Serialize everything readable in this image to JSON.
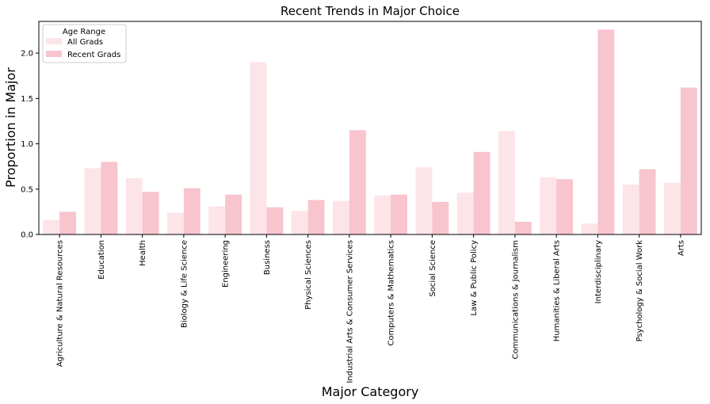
{
  "chart_data": {
    "type": "bar",
    "title": "Recent Trends in Major Choice",
    "xlabel": "Major Category",
    "ylabel": "Proportion in Major",
    "ylim": [
      0,
      2.35
    ],
    "yticks": [
      0.0,
      0.5,
      1.0,
      1.5,
      2.0
    ],
    "ytick_labels": [
      "0.0",
      "0.5",
      "1.0",
      "1.5",
      "2.0"
    ],
    "grid": false,
    "legend": {
      "title": "Age Range",
      "placement": "top-left"
    },
    "categories": [
      "Agriculture & Natural Resources",
      "Education",
      "Health",
      "Biology & Life Science",
      "Engineering",
      "Business",
      "Physical Sciences",
      "Industrial Arts & Consumer Services",
      "Computers & Mathematics",
      "Social Science",
      "Law & Public Policy",
      "Communications & Journalism",
      "Humanities & Liberal Arts",
      "Interdisciplinary",
      "Psychology & Social Work",
      "Arts"
    ],
    "series": [
      {
        "name": "All Grads",
        "color": "#fde4e8",
        "values": [
          0.16,
          0.73,
          0.62,
          0.24,
          0.31,
          1.9,
          0.26,
          0.37,
          0.43,
          0.74,
          0.46,
          1.14,
          0.63,
          0.12,
          0.55,
          0.57
        ]
      },
      {
        "name": "Recent Grads",
        "color": "#f8c4ce",
        "values": [
          0.25,
          0.8,
          0.47,
          0.51,
          0.44,
          0.3,
          0.38,
          1.15,
          0.44,
          0.36,
          0.91,
          0.14,
          0.61,
          2.26,
          0.72,
          1.62
        ]
      }
    ]
  }
}
